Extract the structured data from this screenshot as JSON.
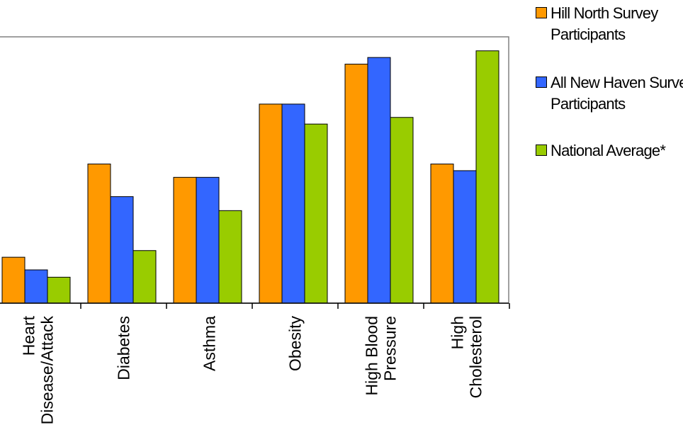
{
  "chart_data": {
    "type": "bar",
    "categories": [
      [
        "Heart",
        "Disease/Attack"
      ],
      [
        "Diabetes"
      ],
      [
        "Asthma"
      ],
      [
        "Obesity"
      ],
      [
        "High Blood",
        "Pressure"
      ],
      [
        "High",
        "Cholesterol"
      ]
    ],
    "series": [
      {
        "name": "Hill North Survey Participants",
        "color": "#FF9900",
        "values": [
          6.9,
          20.9,
          18.9,
          29.9,
          35.9,
          20.9
        ]
      },
      {
        "name": "All New Haven Survey Participants",
        "color": "#3366FF",
        "values": [
          5.0,
          16.0,
          18.9,
          29.9,
          36.9,
          19.9
        ]
      },
      {
        "name": "National Average*",
        "color": "#99CC00",
        "values": [
          3.9,
          7.9,
          13.9,
          26.9,
          27.9,
          37.9
        ]
      }
    ],
    "ylim": [
      0,
      40
    ],
    "grid": false,
    "legend_position": "right"
  }
}
